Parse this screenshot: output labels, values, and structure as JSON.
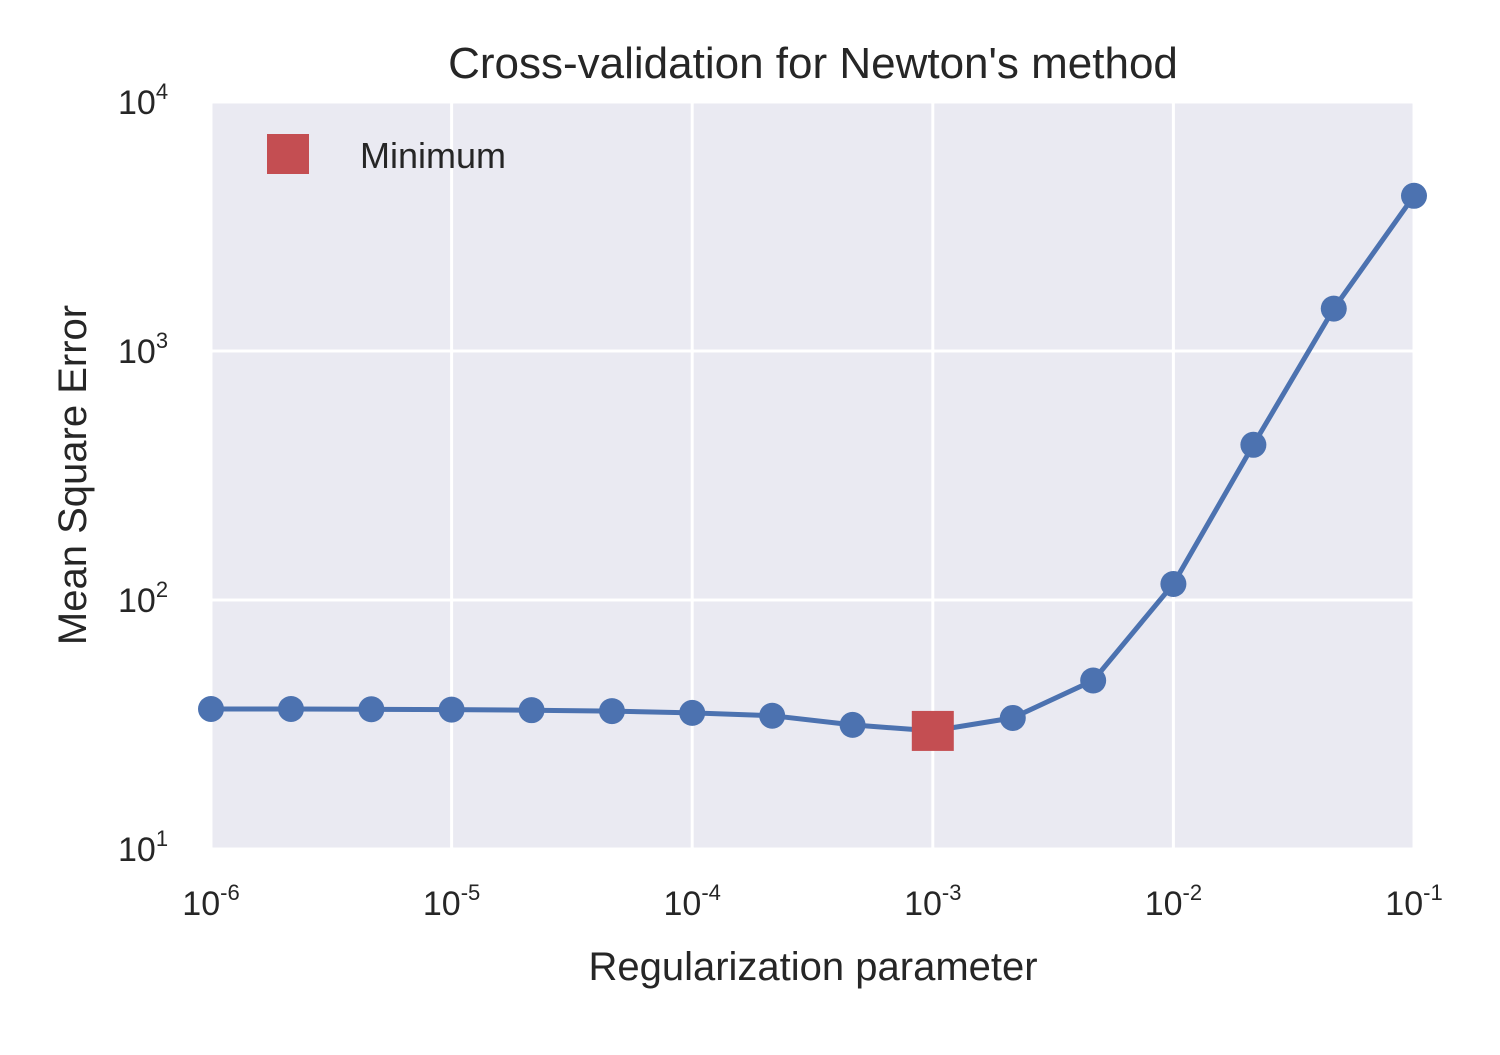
{
  "chart_data": {
    "type": "line",
    "title": "Cross-validation for Newton's method",
    "xlabel": "Regularization parameter",
    "ylabel": "Mean Square Error",
    "xscale": "log",
    "yscale": "log",
    "xlim": [
      1e-06,
      0.1
    ],
    "ylim": [
      10,
      10000
    ],
    "grid": true,
    "legend_position": "top-left",
    "x_ticks": [
      {
        "base": "10",
        "exp": "-6"
      },
      {
        "base": "10",
        "exp": "-5"
      },
      {
        "base": "10",
        "exp": "-4"
      },
      {
        "base": "10",
        "exp": "-3"
      },
      {
        "base": "10",
        "exp": "-2"
      },
      {
        "base": "10",
        "exp": "-1"
      }
    ],
    "y_ticks": [
      {
        "base": "10",
        "exp": "1"
      },
      {
        "base": "10",
        "exp": "2"
      },
      {
        "base": "10",
        "exp": "3"
      },
      {
        "base": "10",
        "exp": "4"
      }
    ],
    "series": [
      {
        "color": "#4c72b0",
        "marker": "circle",
        "x": [
          1e-06,
          2.15e-06,
          4.64e-06,
          1e-05,
          2.15e-05,
          4.64e-05,
          0.0001,
          0.000215,
          0.000464,
          0.001,
          0.00215,
          0.00464,
          0.01,
          0.0215,
          0.0464,
          0.1
        ],
        "y": [
          36.5,
          36.5,
          36.4,
          36.3,
          36.1,
          35.8,
          35.2,
          34.3,
          31.5,
          29.8,
          33.6,
          47.5,
          116,
          420,
          1480,
          4200
        ]
      },
      {
        "name": "Minimum",
        "color": "#c44e52",
        "marker": "square",
        "x": [
          0.001
        ],
        "y": [
          29.8
        ]
      }
    ]
  }
}
